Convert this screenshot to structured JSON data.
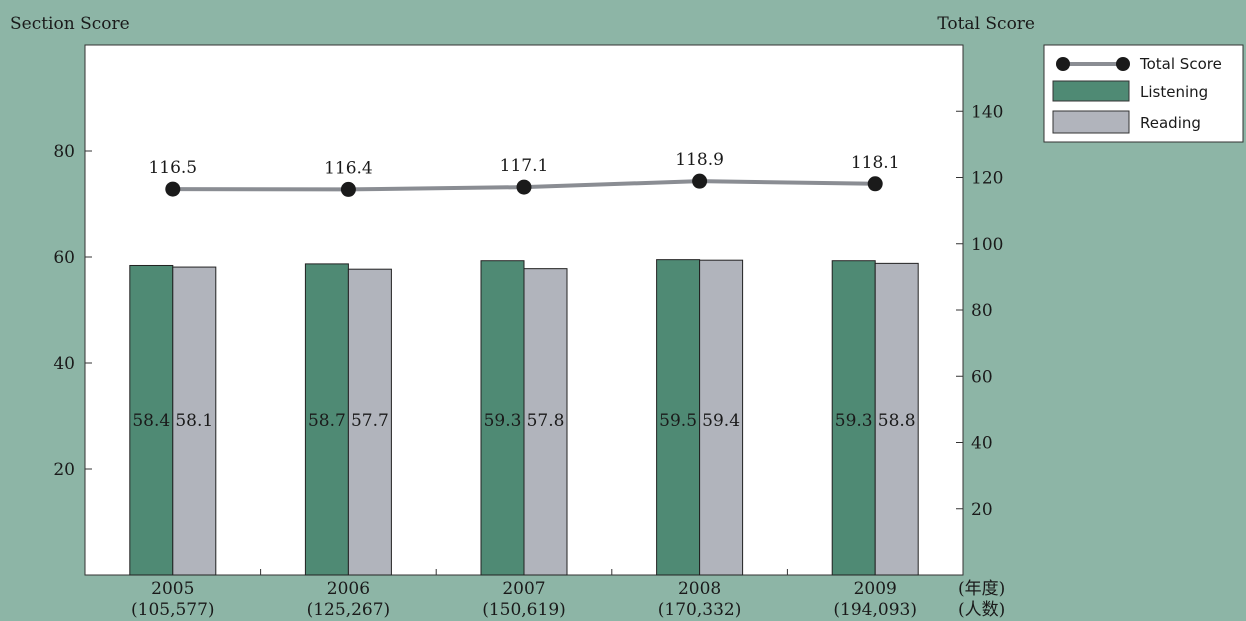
{
  "chart_data": {
    "type": "bar",
    "left_axis_title": "Section Score",
    "right_axis_title": "Total Score",
    "categories": [
      "2005",
      "2006",
      "2007",
      "2008",
      "2009"
    ],
    "category_counts": [
      "(105,577)",
      "(125,267)",
      "(150,619)",
      "(170,332)",
      "(194,093)"
    ],
    "x_unit_year": "(年度)",
    "x_unit_count": "(人数)",
    "left_ylim": [
      0,
      100
    ],
    "left_yticks": [
      20,
      40,
      60,
      80
    ],
    "right_ylim": [
      0,
      160
    ],
    "right_yticks": [
      20,
      40,
      60,
      80,
      100,
      120,
      140
    ],
    "series": [
      {
        "name": "Listening",
        "type": "bar",
        "axis": "left",
        "color": "#4f8a74",
        "values": [
          58.4,
          58.7,
          59.3,
          59.5,
          59.3
        ],
        "labels": [
          "58.4",
          "58.7",
          "59.3",
          "59.5",
          "59.3"
        ]
      },
      {
        "name": "Reading",
        "type": "bar",
        "axis": "left",
        "color": "#b1b4bc",
        "values": [
          58.1,
          57.7,
          57.8,
          59.4,
          58.8
        ],
        "labels": [
          "58.1",
          "57.7",
          "57.8",
          "59.4",
          "58.8"
        ]
      },
      {
        "name": "Total Score",
        "type": "line",
        "axis": "right",
        "color": "#8a8d93",
        "marker_color": "#1a1a1a",
        "values": [
          116.5,
          116.4,
          117.1,
          118.9,
          118.1
        ],
        "labels": [
          "116.5",
          "116.4",
          "117.1",
          "118.9",
          "118.1"
        ]
      }
    ],
    "legend": {
      "position": "right-top",
      "order": [
        "Total Score",
        "Listening",
        "Reading"
      ]
    },
    "grid": false
  }
}
